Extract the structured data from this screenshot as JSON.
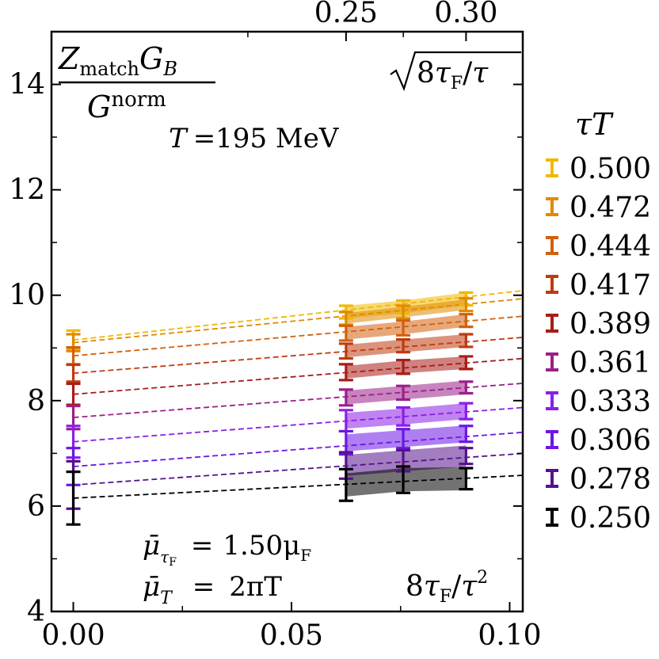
{
  "chart_data": {
    "type": "errorbar-line",
    "title": "",
    "xlabel": "8τF/τ²",
    "xlabel_parts": {
      "a": "8",
      "b": "τ",
      "c": "F",
      "d": "/",
      "e": "τ",
      "f": "2"
    },
    "ylabel": "Z_match G_B / G^norm",
    "ylabel_parts": {
      "num_a": "Z",
      "num_b": "match",
      "num_c": "G",
      "num_d": "B",
      "den_a": "G",
      "den_b": "norm"
    },
    "top_xlabel": "√(8τF)/τ",
    "top_xlabel_parts": {
      "a": "8",
      "b": "τ",
      "c": "F",
      "d": "/",
      "e": "τ"
    },
    "xlim": [
      -0.005,
      0.103
    ],
    "ylim": [
      4,
      15
    ],
    "x_ticks": [
      0.0,
      0.05,
      0.1
    ],
    "x_tick_labels": [
      "0.00",
      "0.05",
      "0.10"
    ],
    "y_ticks": [
      4,
      6,
      8,
      10,
      12,
      14
    ],
    "y_tick_labels": [
      "4",
      "6",
      "8",
      "10",
      "12",
      "14"
    ],
    "top_ticks": [
      0.25,
      0.3
    ],
    "top_tick_labels": [
      "0.25",
      "0.30"
    ],
    "annotations": {
      "temperature": {
        "a": "T",
        "b": "=195 MeV"
      },
      "mu_tauF": {
        "a": "μ̄",
        "b": "τ",
        "c": "F",
        "d": "=",
        "e": "1.50μ",
        "f": "F"
      },
      "mu_T": {
        "a": "μ̄",
        "b": "T",
        "c": "=",
        "d": "2πT"
      }
    },
    "legend": {
      "title_a": "τ",
      "title_b": "T",
      "position": "right"
    },
    "flow_x": [
      0.0625,
      0.0756,
      0.09
    ],
    "extrapolation_x_range": [
      0,
      0.103
    ],
    "series": [
      {
        "name": "0.500",
        "color": "#f0b800",
        "x0_value": 9.15,
        "x0_err": 0.18,
        "slope": 9.1,
        "values": [
          9.68,
          9.78,
          9.93
        ],
        "errs": [
          0.12,
          0.12,
          0.12
        ],
        "band": 0.12
      },
      {
        "name": "0.472",
        "color": "#e08a00",
        "x0_value": 9.1,
        "x0_err": 0.16,
        "slope": 8.1,
        "values": [
          9.56,
          9.68,
          9.82
        ],
        "errs": [
          0.12,
          0.12,
          0.12
        ],
        "band": 0.1
      },
      {
        "name": "0.444",
        "color": "#d2600c",
        "x0_value": 8.85,
        "x0_err": 0.16,
        "slope": 7.3,
        "values": [
          9.28,
          9.38,
          9.52
        ],
        "errs": [
          0.14,
          0.14,
          0.12
        ],
        "band": 0.12
      },
      {
        "name": "0.417",
        "color": "#c03a10",
        "x0_value": 8.52,
        "x0_err": 0.16,
        "slope": 6.6,
        "values": [
          8.94,
          9.04,
          9.14
        ],
        "errs": [
          0.14,
          0.12,
          0.12
        ],
        "band": 0.12
      },
      {
        "name": "0.389",
        "color": "#a81c18",
        "x0_value": 8.12,
        "x0_err": 0.2,
        "slope": 6.6,
        "values": [
          8.54,
          8.64,
          8.72
        ],
        "errs": [
          0.15,
          0.13,
          0.12
        ],
        "band": 0.12
      },
      {
        "name": "0.361",
        "color": "#9b1f8a",
        "x0_value": 7.68,
        "x0_err": 0.22,
        "slope": 6.3,
        "values": [
          8.06,
          8.15,
          8.25
        ],
        "errs": [
          0.15,
          0.13,
          0.11
        ],
        "band": 0.13
      },
      {
        "name": "0.333",
        "color": "#8b1ee8",
        "x0_value": 7.22,
        "x0_err": 0.3,
        "slope": 6.3,
        "values": [
          7.62,
          7.7,
          7.8
        ],
        "errs": [
          0.2,
          0.17,
          0.15
        ],
        "band": 0.15
      },
      {
        "name": "0.306",
        "color": "#6d16e6",
        "x0_value": 6.75,
        "x0_err": 0.35,
        "slope": 6.3,
        "values": [
          7.2,
          7.28,
          7.37
        ],
        "errs": [
          0.22,
          0.18,
          0.15
        ],
        "band": 0.16
      },
      {
        "name": "0.278",
        "color": "#55128c",
        "x0_value": 6.4,
        "x0_err": 0.45,
        "slope": 5.8,
        "values": [
          6.77,
          6.86,
          6.95
        ],
        "errs": [
          0.25,
          0.2,
          0.15
        ],
        "band": 0.2
      },
      {
        "name": "0.250",
        "color": "#000000",
        "x0_value": 6.15,
        "x0_err": 0.5,
        "slope": 4.2,
        "values": [
          6.4,
          6.5,
          6.52
        ],
        "errs": [
          0.3,
          0.25,
          0.2
        ],
        "band": 0.22
      }
    ]
  }
}
